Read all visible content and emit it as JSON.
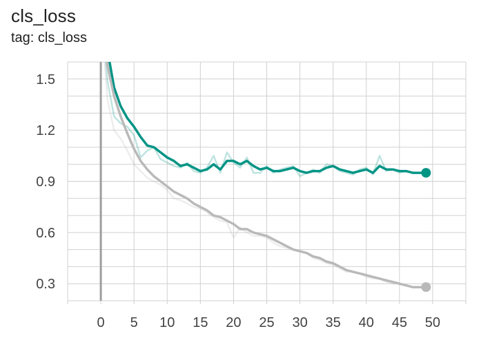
{
  "card": {
    "title": "cls_loss",
    "subtitle": "tag: cls_loss"
  },
  "colors": {
    "teal": "#009485",
    "gray": "#b9b9b9",
    "grid": "#d0d0d0",
    "zero_axis": "#9e9e9e"
  },
  "chart_data": {
    "type": "line",
    "title": "cls_loss",
    "subtitle": "tag: cls_loss",
    "xlabel": "",
    "ylabel": "",
    "xlim": [
      -5,
      55
    ],
    "ylim": [
      0.2,
      1.6
    ],
    "xticks": [
      0,
      5,
      10,
      15,
      20,
      25,
      30,
      35,
      40,
      45,
      50
    ],
    "yticks": [
      0.3,
      0.6,
      0.9,
      1.2,
      1.5
    ],
    "grid": true,
    "smoothing": true,
    "series": [
      {
        "color": "#009485",
        "smoothed": [
          1.9,
          1.67,
          1.45,
          1.34,
          1.27,
          1.22,
          1.16,
          1.11,
          1.1,
          1.07,
          1.04,
          1.02,
          0.99,
          1.0,
          0.98,
          0.96,
          0.97,
          1.0,
          0.97,
          1.02,
          1.02,
          1.0,
          1.02,
          0.99,
          0.97,
          0.98,
          0.96,
          0.96,
          0.97,
          0.98,
          0.96,
          0.95,
          0.96,
          0.96,
          0.98,
          0.99,
          0.97,
          0.96,
          0.95,
          0.96,
          0.97,
          0.95,
          0.99,
          0.97,
          0.97,
          0.96,
          0.96,
          0.95,
          0.95,
          0.95
        ],
        "raw": [
          1.9,
          1.49,
          1.28,
          1.24,
          1.22,
          1.17,
          1.04,
          1.08,
          1.1,
          1.03,
          1.01,
          0.99,
          0.98,
          1.01,
          0.96,
          0.95,
          0.98,
          1.05,
          0.95,
          1.07,
          1.01,
          0.98,
          1.04,
          0.95,
          0.95,
          0.99,
          0.95,
          0.97,
          0.98,
          0.99,
          0.93,
          0.95,
          0.97,
          0.95,
          1.0,
          0.99,
          0.96,
          0.95,
          0.94,
          0.97,
          0.98,
          0.94,
          1.05,
          0.96,
          0.97,
          0.95,
          0.96,
          0.95,
          0.95,
          0.95
        ]
      },
      {
        "color": "#b9b9b9",
        "smoothed": [
          1.9,
          1.58,
          1.4,
          1.28,
          1.18,
          1.09,
          1.02,
          0.97,
          0.93,
          0.9,
          0.87,
          0.84,
          0.82,
          0.8,
          0.77,
          0.75,
          0.73,
          0.7,
          0.69,
          0.67,
          0.65,
          0.62,
          0.62,
          0.6,
          0.59,
          0.58,
          0.56,
          0.54,
          0.52,
          0.5,
          0.49,
          0.48,
          0.46,
          0.45,
          0.43,
          0.42,
          0.4,
          0.38,
          0.37,
          0.36,
          0.35,
          0.34,
          0.33,
          0.32,
          0.31,
          0.3,
          0.29,
          0.28,
          0.28,
          0.28
        ],
        "raw": [
          1.9,
          1.38,
          1.2,
          1.15,
          1.08,
          1.0,
          0.96,
          0.92,
          0.9,
          0.88,
          0.85,
          0.8,
          0.79,
          0.77,
          0.75,
          0.74,
          0.72,
          0.69,
          0.67,
          0.66,
          0.57,
          0.63,
          0.6,
          0.58,
          0.58,
          0.57,
          0.54,
          0.52,
          0.51,
          0.5,
          0.49,
          0.48,
          0.45,
          0.44,
          0.42,
          0.41,
          0.39,
          0.37,
          0.37,
          0.36,
          0.34,
          0.33,
          0.33,
          0.31,
          0.3,
          0.3,
          0.29,
          0.28,
          0.28,
          0.28
        ]
      }
    ]
  }
}
